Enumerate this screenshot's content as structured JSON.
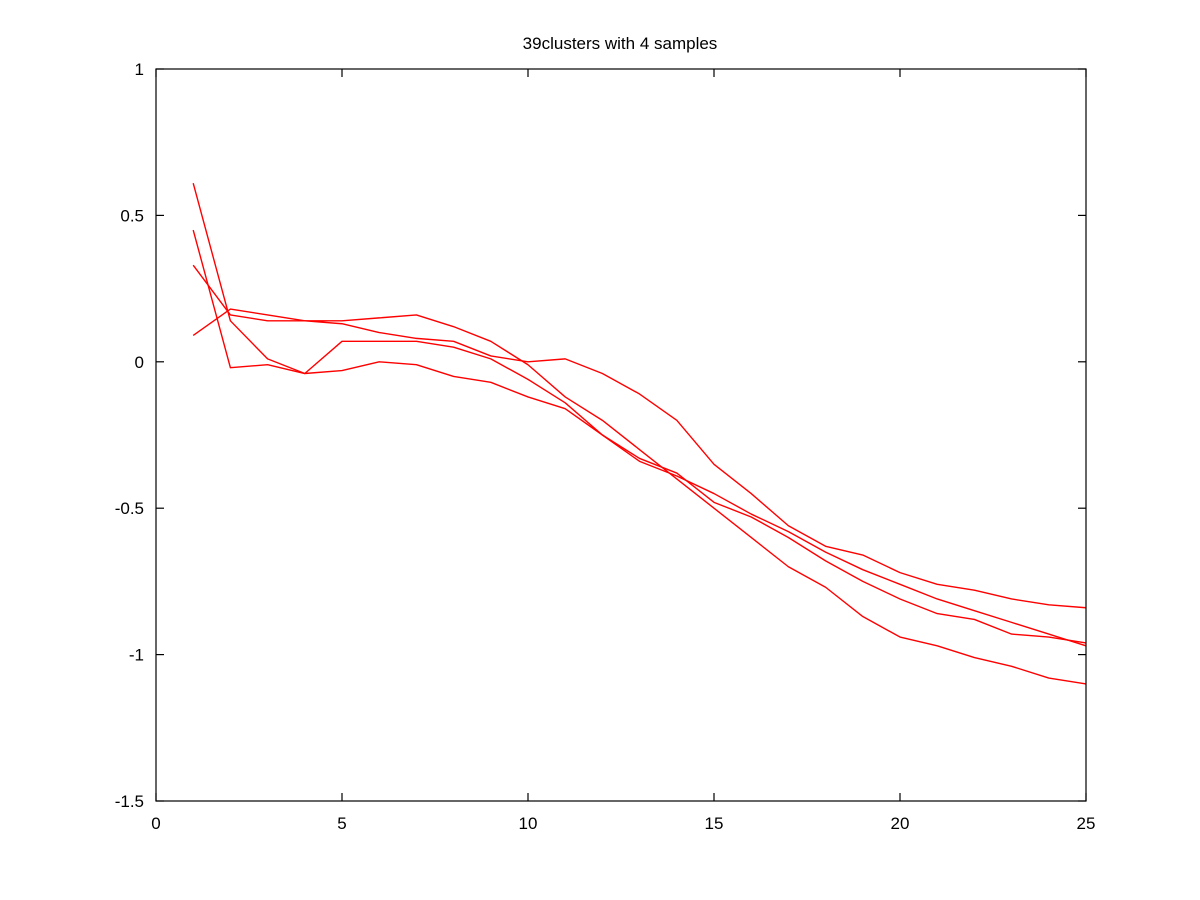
{
  "chart_data": {
    "type": "line",
    "title": "39clusters with 4 samples",
    "xlabel": "",
    "ylabel": "",
    "xlim": [
      0,
      25
    ],
    "ylim": [
      -1.5,
      1
    ],
    "x_ticks": [
      0,
      5,
      10,
      15,
      20,
      25
    ],
    "x_tick_labels": [
      "0",
      "5",
      "10",
      "15",
      "20",
      "25"
    ],
    "y_ticks": [
      1,
      0.5,
      0,
      -0.5,
      -1,
      -1.5
    ],
    "y_tick_labels": [
      "1",
      "0.5",
      "0",
      "-0.5",
      "-1",
      "-1.5"
    ],
    "grid": false,
    "legend": "none",
    "line_color": "#ff0000",
    "x": [
      1,
      2,
      3,
      4,
      5,
      6,
      7,
      8,
      9,
      10,
      11,
      12,
      13,
      14,
      15,
      16,
      17,
      18,
      19,
      20,
      21,
      22,
      23,
      24,
      25
    ],
    "series": [
      {
        "values": [
          0.61,
          0.14,
          0.01,
          -0.04,
          0.07,
          0.07,
          0.07,
          0.05,
          0.01,
          -0.06,
          -0.14,
          -0.25,
          -0.33,
          -0.38,
          -0.48,
          -0.53,
          -0.6,
          -0.68,
          -0.75,
          -0.81,
          -0.86,
          -0.88,
          -0.93,
          -0.94,
          -0.96
        ]
      },
      {
        "values": [
          0.45,
          -0.02,
          -0.01,
          -0.04,
          -0.03,
          0.0,
          -0.01,
          -0.05,
          -0.07,
          -0.12,
          -0.16,
          -0.25,
          -0.34,
          -0.39,
          -0.45,
          -0.52,
          -0.58,
          -0.65,
          -0.71,
          -0.76,
          -0.81,
          -0.85,
          -0.89,
          -0.93,
          -0.97
        ]
      },
      {
        "values": [
          0.33,
          0.16,
          0.14,
          0.14,
          0.13,
          0.1,
          0.08,
          0.07,
          0.02,
          0.0,
          0.01,
          -0.04,
          -0.11,
          -0.2,
          -0.35,
          -0.45,
          -0.56,
          -0.63,
          -0.66,
          -0.72,
          -0.76,
          -0.78,
          -0.81,
          -0.83,
          -0.84
        ]
      },
      {
        "values": [
          0.09,
          0.18,
          0.16,
          0.14,
          0.14,
          0.15,
          0.16,
          0.12,
          0.07,
          -0.01,
          -0.12,
          -0.2,
          -0.3,
          -0.4,
          -0.5,
          -0.6,
          -0.7,
          -0.77,
          -0.87,
          -0.94,
          -0.97,
          -1.01,
          -1.04,
          -1.08,
          -1.1
        ]
      }
    ]
  }
}
